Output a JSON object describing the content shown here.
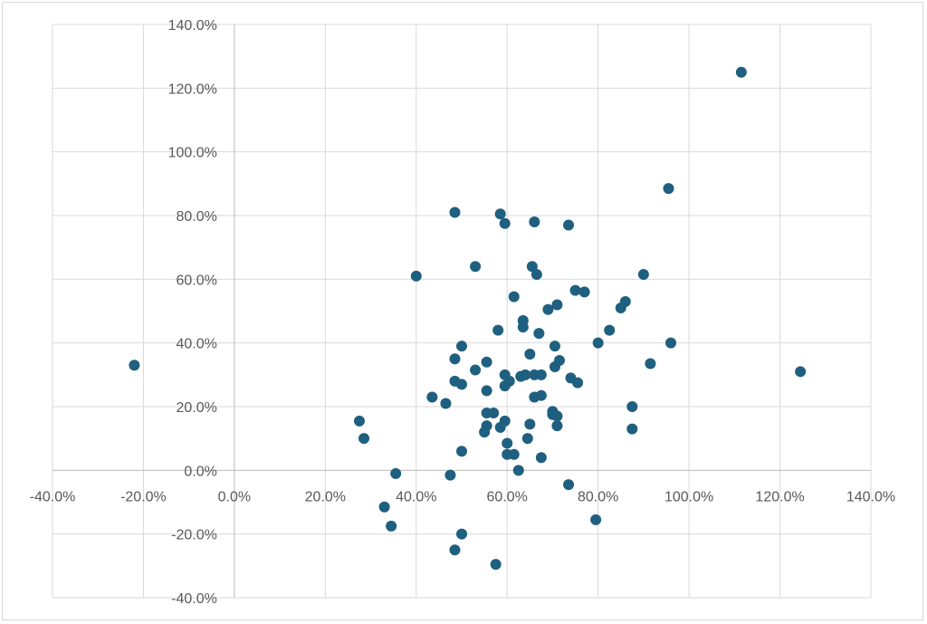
{
  "chart_data": {
    "type": "scatter",
    "title": "",
    "xlabel": "",
    "ylabel": "",
    "xlim": [
      -0.4,
      1.4
    ],
    "ylim": [
      -0.4,
      1.4
    ],
    "x_ticks": [
      -0.4,
      -0.2,
      0.0,
      0.2,
      0.4,
      0.6,
      0.8,
      1.0,
      1.2,
      1.4
    ],
    "y_ticks": [
      -0.4,
      -0.2,
      0.0,
      0.2,
      0.4,
      0.6,
      0.8,
      1.0,
      1.2,
      1.4
    ],
    "x_tick_labels": [
      "-40.0%",
      "-20.0%",
      "0.0%",
      "20.0%",
      "40.0%",
      "60.0%",
      "80.0%",
      "100.0%",
      "120.0%",
      "140.0%"
    ],
    "y_tick_labels": [
      "-40.0%",
      "-20.0%",
      "0.0%",
      "20.0%",
      "40.0%",
      "60.0%",
      "80.0%",
      "100.0%",
      "120.0%",
      "140.0%"
    ],
    "grid": true,
    "marker_color": "#1f5f7f",
    "series": [
      {
        "points": [
          [
            -0.22,
            0.33
          ],
          [
            0.275,
            0.155
          ],
          [
            0.285,
            0.1
          ],
          [
            0.33,
            -0.115
          ],
          [
            0.345,
            -0.175
          ],
          [
            0.355,
            -0.01
          ],
          [
            0.4,
            0.61
          ],
          [
            0.435,
            0.23
          ],
          [
            0.465,
            0.21
          ],
          [
            0.475,
            -0.015
          ],
          [
            0.485,
            0.81
          ],
          [
            0.485,
            0.35
          ],
          [
            0.485,
            0.28
          ],
          [
            0.485,
            -0.25
          ],
          [
            0.5,
            0.39
          ],
          [
            0.5,
            0.27
          ],
          [
            0.5,
            0.06
          ],
          [
            0.5,
            -0.2
          ],
          [
            0.53,
            0.64
          ],
          [
            0.53,
            0.315
          ],
          [
            0.55,
            0.12
          ],
          [
            0.555,
            0.34
          ],
          [
            0.555,
            0.25
          ],
          [
            0.555,
            0.18
          ],
          [
            0.555,
            0.14
          ],
          [
            0.57,
            0.18
          ],
          [
            0.575,
            -0.295
          ],
          [
            0.58,
            0.44
          ],
          [
            0.585,
            0.805
          ],
          [
            0.585,
            0.135
          ],
          [
            0.595,
            0.775
          ],
          [
            0.595,
            0.3
          ],
          [
            0.595,
            0.265
          ],
          [
            0.595,
            0.155
          ],
          [
            0.6,
            0.085
          ],
          [
            0.6,
            0.05
          ],
          [
            0.605,
            0.28
          ],
          [
            0.615,
            0.545
          ],
          [
            0.615,
            0.05
          ],
          [
            0.625,
            0.0
          ],
          [
            0.63,
            0.295
          ],
          [
            0.635,
            0.47
          ],
          [
            0.635,
            0.45
          ],
          [
            0.64,
            0.3
          ],
          [
            0.645,
            0.1
          ],
          [
            0.65,
            0.365
          ],
          [
            0.65,
            0.145
          ],
          [
            0.655,
            0.64
          ],
          [
            0.66,
            0.78
          ],
          [
            0.66,
            0.23
          ],
          [
            0.66,
            0.3
          ],
          [
            0.665,
            0.615
          ],
          [
            0.67,
            0.43
          ],
          [
            0.675,
            0.3
          ],
          [
            0.675,
            0.235
          ],
          [
            0.675,
            0.04
          ],
          [
            0.69,
            0.505
          ],
          [
            0.7,
            0.185
          ],
          [
            0.7,
            0.175
          ],
          [
            0.705,
            0.39
          ],
          [
            0.705,
            0.325
          ],
          [
            0.71,
            0.52
          ],
          [
            0.71,
            0.17
          ],
          [
            0.71,
            0.14
          ],
          [
            0.715,
            0.345
          ],
          [
            0.735,
            0.77
          ],
          [
            0.735,
            -0.045
          ],
          [
            0.74,
            0.29
          ],
          [
            0.75,
            0.565
          ],
          [
            0.755,
            0.275
          ],
          [
            0.77,
            0.56
          ],
          [
            0.795,
            -0.155
          ],
          [
            0.8,
            0.4
          ],
          [
            0.825,
            0.44
          ],
          [
            0.85,
            0.51
          ],
          [
            0.86,
            0.53
          ],
          [
            0.875,
            0.2
          ],
          [
            0.875,
            0.13
          ],
          [
            0.9,
            0.615
          ],
          [
            0.915,
            0.335
          ],
          [
            0.955,
            0.885
          ],
          [
            0.96,
            0.4
          ],
          [
            1.115,
            1.25
          ],
          [
            1.245,
            0.31
          ]
        ]
      }
    ]
  }
}
